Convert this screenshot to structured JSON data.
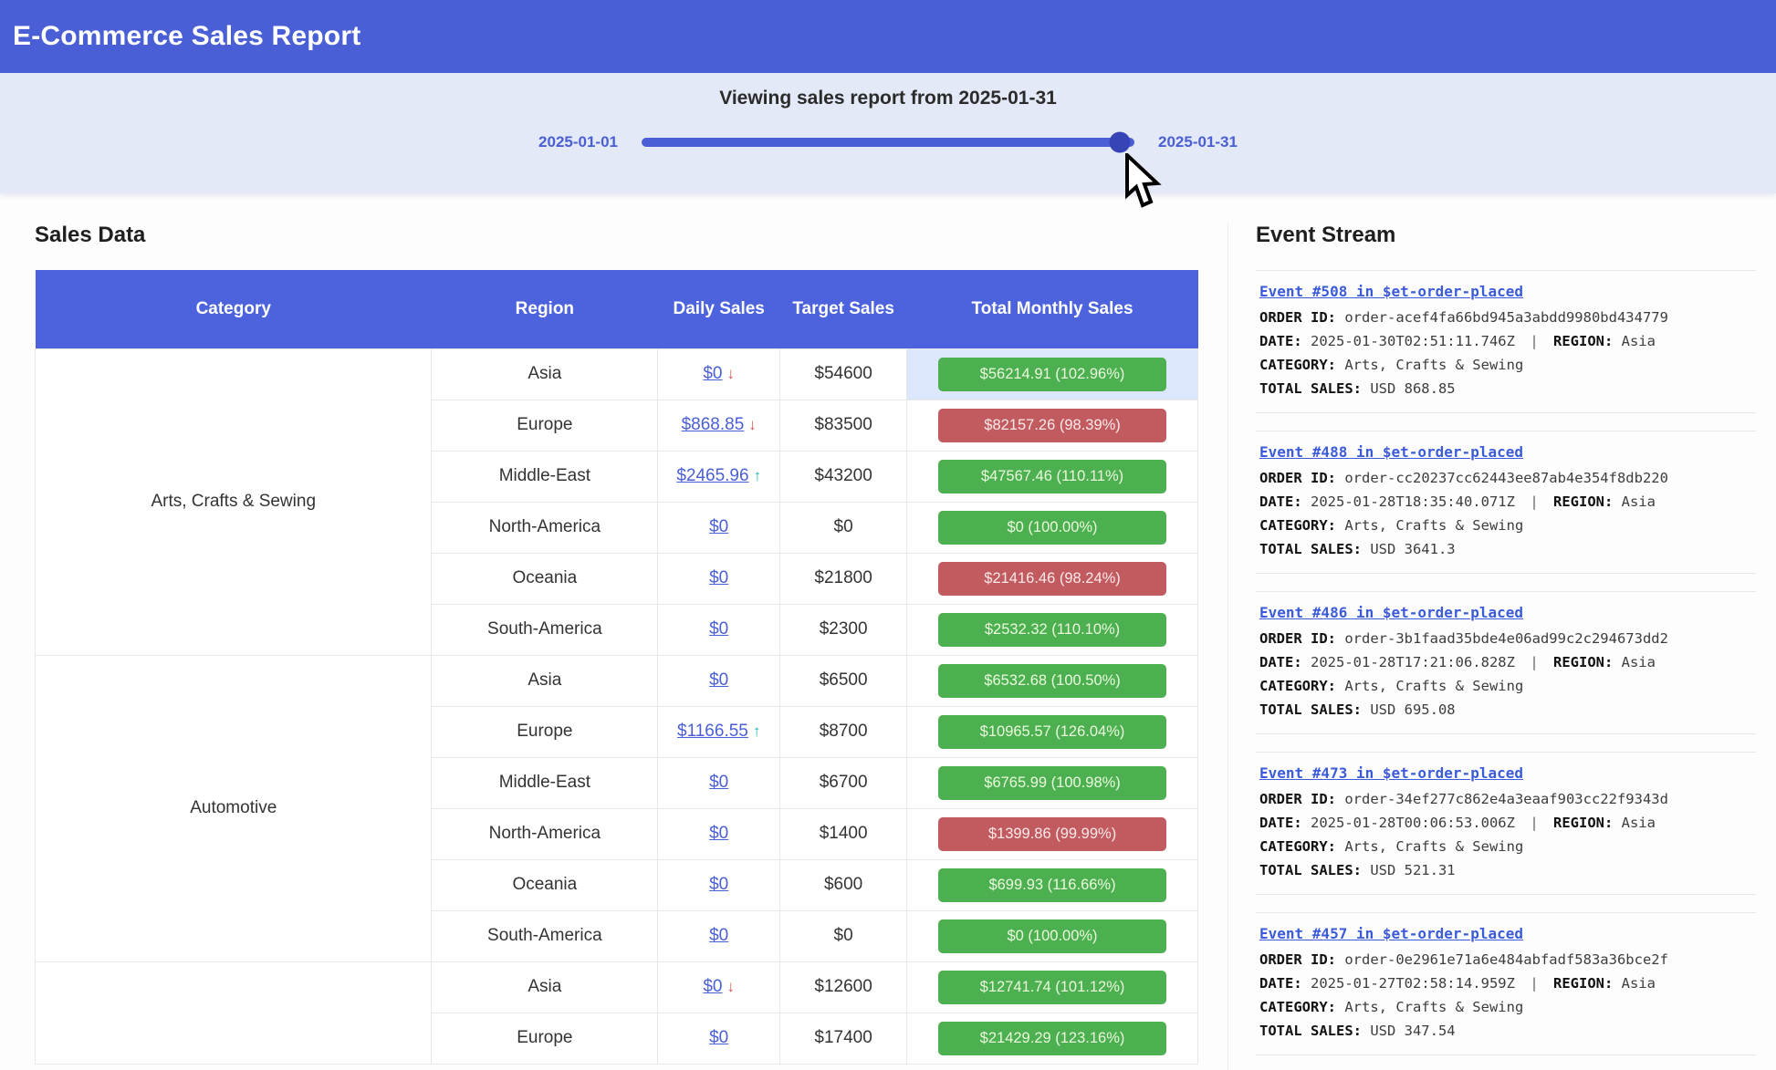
{
  "header": {
    "title": "E-Commerce Sales Report"
  },
  "slider": {
    "caption": "Viewing sales report from 2025-01-31",
    "min_label": "2025-01-01",
    "max_label": "2025-01-31",
    "value_percent": 97
  },
  "colors": {
    "header_blue": "#4a5fd6",
    "table_header_blue": "#4c63dd",
    "badge_green": "#4caf50",
    "badge_green_text": "#eafadd",
    "badge_red": "#c25b60",
    "badge_red_text": "#fbe9e9",
    "link_blue": "#4a5fd6",
    "row_highlight_blue": "#dce7fb",
    "arrow_red": "#d9534f",
    "arrow_teal": "#20b2aa"
  },
  "sales": {
    "heading": "Sales Data",
    "columns": [
      "Category",
      "Region",
      "Daily Sales",
      "Target Sales",
      "Total Monthly Sales"
    ],
    "groups": [
      {
        "category": "Arts, Crafts & Sewing",
        "rows": [
          {
            "region": "Asia",
            "daily": "$0",
            "arrow": "down",
            "target": "$54600",
            "monthly": "$56214.91 (102.96%)",
            "status": "green",
            "highlight": true
          },
          {
            "region": "Europe",
            "daily": "$868.85",
            "arrow": "down",
            "target": "$83500",
            "monthly": "$82157.26 (98.39%)",
            "status": "red",
            "highlight": false
          },
          {
            "region": "Middle-East",
            "daily": "$2465.96",
            "arrow": "up",
            "target": "$43200",
            "monthly": "$47567.46 (110.11%)",
            "status": "green",
            "highlight": false
          },
          {
            "region": "North-America",
            "daily": "$0",
            "arrow": null,
            "target": "$0",
            "monthly": "$0 (100.00%)",
            "status": "green",
            "highlight": false
          },
          {
            "region": "Oceania",
            "daily": "$0",
            "arrow": null,
            "target": "$21800",
            "monthly": "$21416.46 (98.24%)",
            "status": "red",
            "highlight": false
          },
          {
            "region": "South-America",
            "daily": "$0",
            "arrow": null,
            "target": "$2300",
            "monthly": "$2532.32 (110.10%)",
            "status": "green",
            "highlight": false
          }
        ]
      },
      {
        "category": "Automotive",
        "rows": [
          {
            "region": "Asia",
            "daily": "$0",
            "arrow": null,
            "target": "$6500",
            "monthly": "$6532.68 (100.50%)",
            "status": "green",
            "highlight": false
          },
          {
            "region": "Europe",
            "daily": "$1166.55",
            "arrow": "up",
            "target": "$8700",
            "monthly": "$10965.57 (126.04%)",
            "status": "green",
            "highlight": false
          },
          {
            "region": "Middle-East",
            "daily": "$0",
            "arrow": null,
            "target": "$6700",
            "monthly": "$6765.99 (100.98%)",
            "status": "green",
            "highlight": false
          },
          {
            "region": "North-America",
            "daily": "$0",
            "arrow": null,
            "target": "$1400",
            "monthly": "$1399.86 (99.99%)",
            "status": "red",
            "highlight": false
          },
          {
            "region": "Oceania",
            "daily": "$0",
            "arrow": null,
            "target": "$600",
            "monthly": "$699.93 (116.66%)",
            "status": "green",
            "highlight": false
          },
          {
            "region": "South-America",
            "daily": "$0",
            "arrow": null,
            "target": "$0",
            "monthly": "$0 (100.00%)",
            "status": "green",
            "highlight": false
          }
        ]
      },
      {
        "category": "",
        "rows": [
          {
            "region": "Asia",
            "daily": "$0",
            "arrow": "down",
            "target": "$12600",
            "monthly": "$12741.74 (101.12%)",
            "status": "green",
            "highlight": false
          },
          {
            "region": "Europe",
            "daily": "$0",
            "arrow": null,
            "target": "$17400",
            "monthly": "$21429.29 (123.16%)",
            "status": "green",
            "highlight": false
          }
        ]
      }
    ]
  },
  "events": {
    "heading": "Event Stream",
    "labels": {
      "order_id": "ORDER ID:",
      "date": "DATE:",
      "region": "REGION:",
      "category": "CATEGORY:",
      "total_sales": "TOTAL SALES:",
      "separator": "|"
    },
    "items": [
      {
        "title": "Event #508 in $et-order-placed",
        "order_id": "order-acef4fa66bd945a3abdd9980bd434779",
        "date": "2025-01-30T02:51:11.746Z",
        "region": "Asia",
        "category": "Arts, Crafts & Sewing",
        "total_sales": "USD 868.85"
      },
      {
        "title": "Event #488 in $et-order-placed",
        "order_id": "order-cc20237cc62443ee87ab4e354f8db220",
        "date": "2025-01-28T18:35:40.071Z",
        "region": "Asia",
        "category": "Arts, Crafts & Sewing",
        "total_sales": "USD 3641.3"
      },
      {
        "title": "Event #486 in $et-order-placed",
        "order_id": "order-3b1faad35bde4e06ad99c2c294673dd2",
        "date": "2025-01-28T17:21:06.828Z",
        "region": "Asia",
        "category": "Arts, Crafts & Sewing",
        "total_sales": "USD 695.08"
      },
      {
        "title": "Event #473 in $et-order-placed",
        "order_id": "order-34ef277c862e4a3eaaf903cc22f9343d",
        "date": "2025-01-28T00:06:53.006Z",
        "region": "Asia",
        "category": "Arts, Crafts & Sewing",
        "total_sales": "USD 521.31"
      },
      {
        "title": "Event #457 in $et-order-placed",
        "order_id": "order-0e2961e71a6e484abfadf583a36bce2f",
        "date": "2025-01-27T02:58:14.959Z",
        "region": "Asia",
        "category": "Arts, Crafts & Sewing",
        "total_sales": "USD 347.54"
      }
    ]
  }
}
